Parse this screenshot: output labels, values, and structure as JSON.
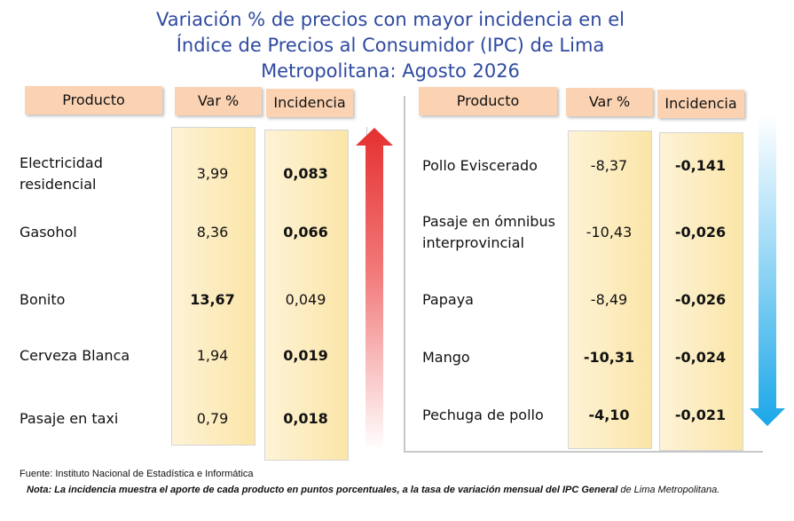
{
  "title_lines": [
    "Variación % de precios con mayor incidencia en el",
    "Índice de Precios al Consumidor (IPC) de Lima",
    "Metropolitana: Agosto 2026"
  ],
  "headers": {
    "product": "Producto",
    "var": "Var %",
    "incidence": "Incidencia"
  },
  "colors": {
    "title": "#2f4aa0",
    "header_bg": "#fbd3b3",
    "up_arrow": "#e53030",
    "down_arrow": "#1aa7e8"
  },
  "chart_data": {
    "type": "table",
    "title": "Variación % de precios con mayor incidencia en el Índice de Precios al Consumidor (IPC) de Lima Metropolitana: Agosto 2026",
    "columns": [
      "Producto",
      "Var %",
      "Incidencia"
    ],
    "increases": [
      {
        "product_lines": [
          "Electricidad",
          "residencial"
        ],
        "var": "3,99",
        "incidence": "0,083",
        "var_bold": false,
        "inc_bold": true
      },
      {
        "product_lines": [
          "Gasohol"
        ],
        "var": "8,36",
        "incidence": "0,066",
        "var_bold": false,
        "inc_bold": true
      },
      {
        "product_lines": [
          "Bonito"
        ],
        "var": "13,67",
        "incidence": "0,049",
        "var_bold": true,
        "inc_bold": false
      },
      {
        "product_lines": [
          "Cerveza Blanca"
        ],
        "var": "1,94",
        "incidence": "0,019",
        "var_bold": false,
        "inc_bold": true
      },
      {
        "product_lines": [
          "Pasaje en taxi"
        ],
        "var": "0,79",
        "incidence": "0,018",
        "var_bold": false,
        "inc_bold": true
      }
    ],
    "decreases": [
      {
        "product_lines": [
          "Pollo Eviscerado"
        ],
        "var": "-8,37",
        "incidence": "-0,141",
        "var_bold": false,
        "inc_bold": true
      },
      {
        "product_lines": [
          "Pasaje en ómnibus",
          "interprovincial"
        ],
        "var": "-10,43",
        "incidence": "-0,026",
        "var_bold": false,
        "inc_bold": true
      },
      {
        "product_lines": [
          "Papaya"
        ],
        "var": "-8,49",
        "incidence": "-0,026",
        "var_bold": false,
        "inc_bold": true
      },
      {
        "product_lines": [
          "Mango"
        ],
        "var": "-10,31",
        "incidence": "-0,024",
        "var_bold": true,
        "inc_bold": true
      },
      {
        "product_lines": [
          "Pechuga de pollo"
        ],
        "var": "-4,10",
        "incidence": "-0,021",
        "var_bold": true,
        "inc_bold": true
      }
    ]
  },
  "source": "Fuente: Instituto Nacional de Estadística e Informática",
  "note": {
    "part1": "Nota: La incidencia muestra el aporte de cada producto en puntos porcentuales, a la tasa de variación mensual del ",
    "part2": "IPC General",
    "part3": " de Lima Metropolitana."
  }
}
